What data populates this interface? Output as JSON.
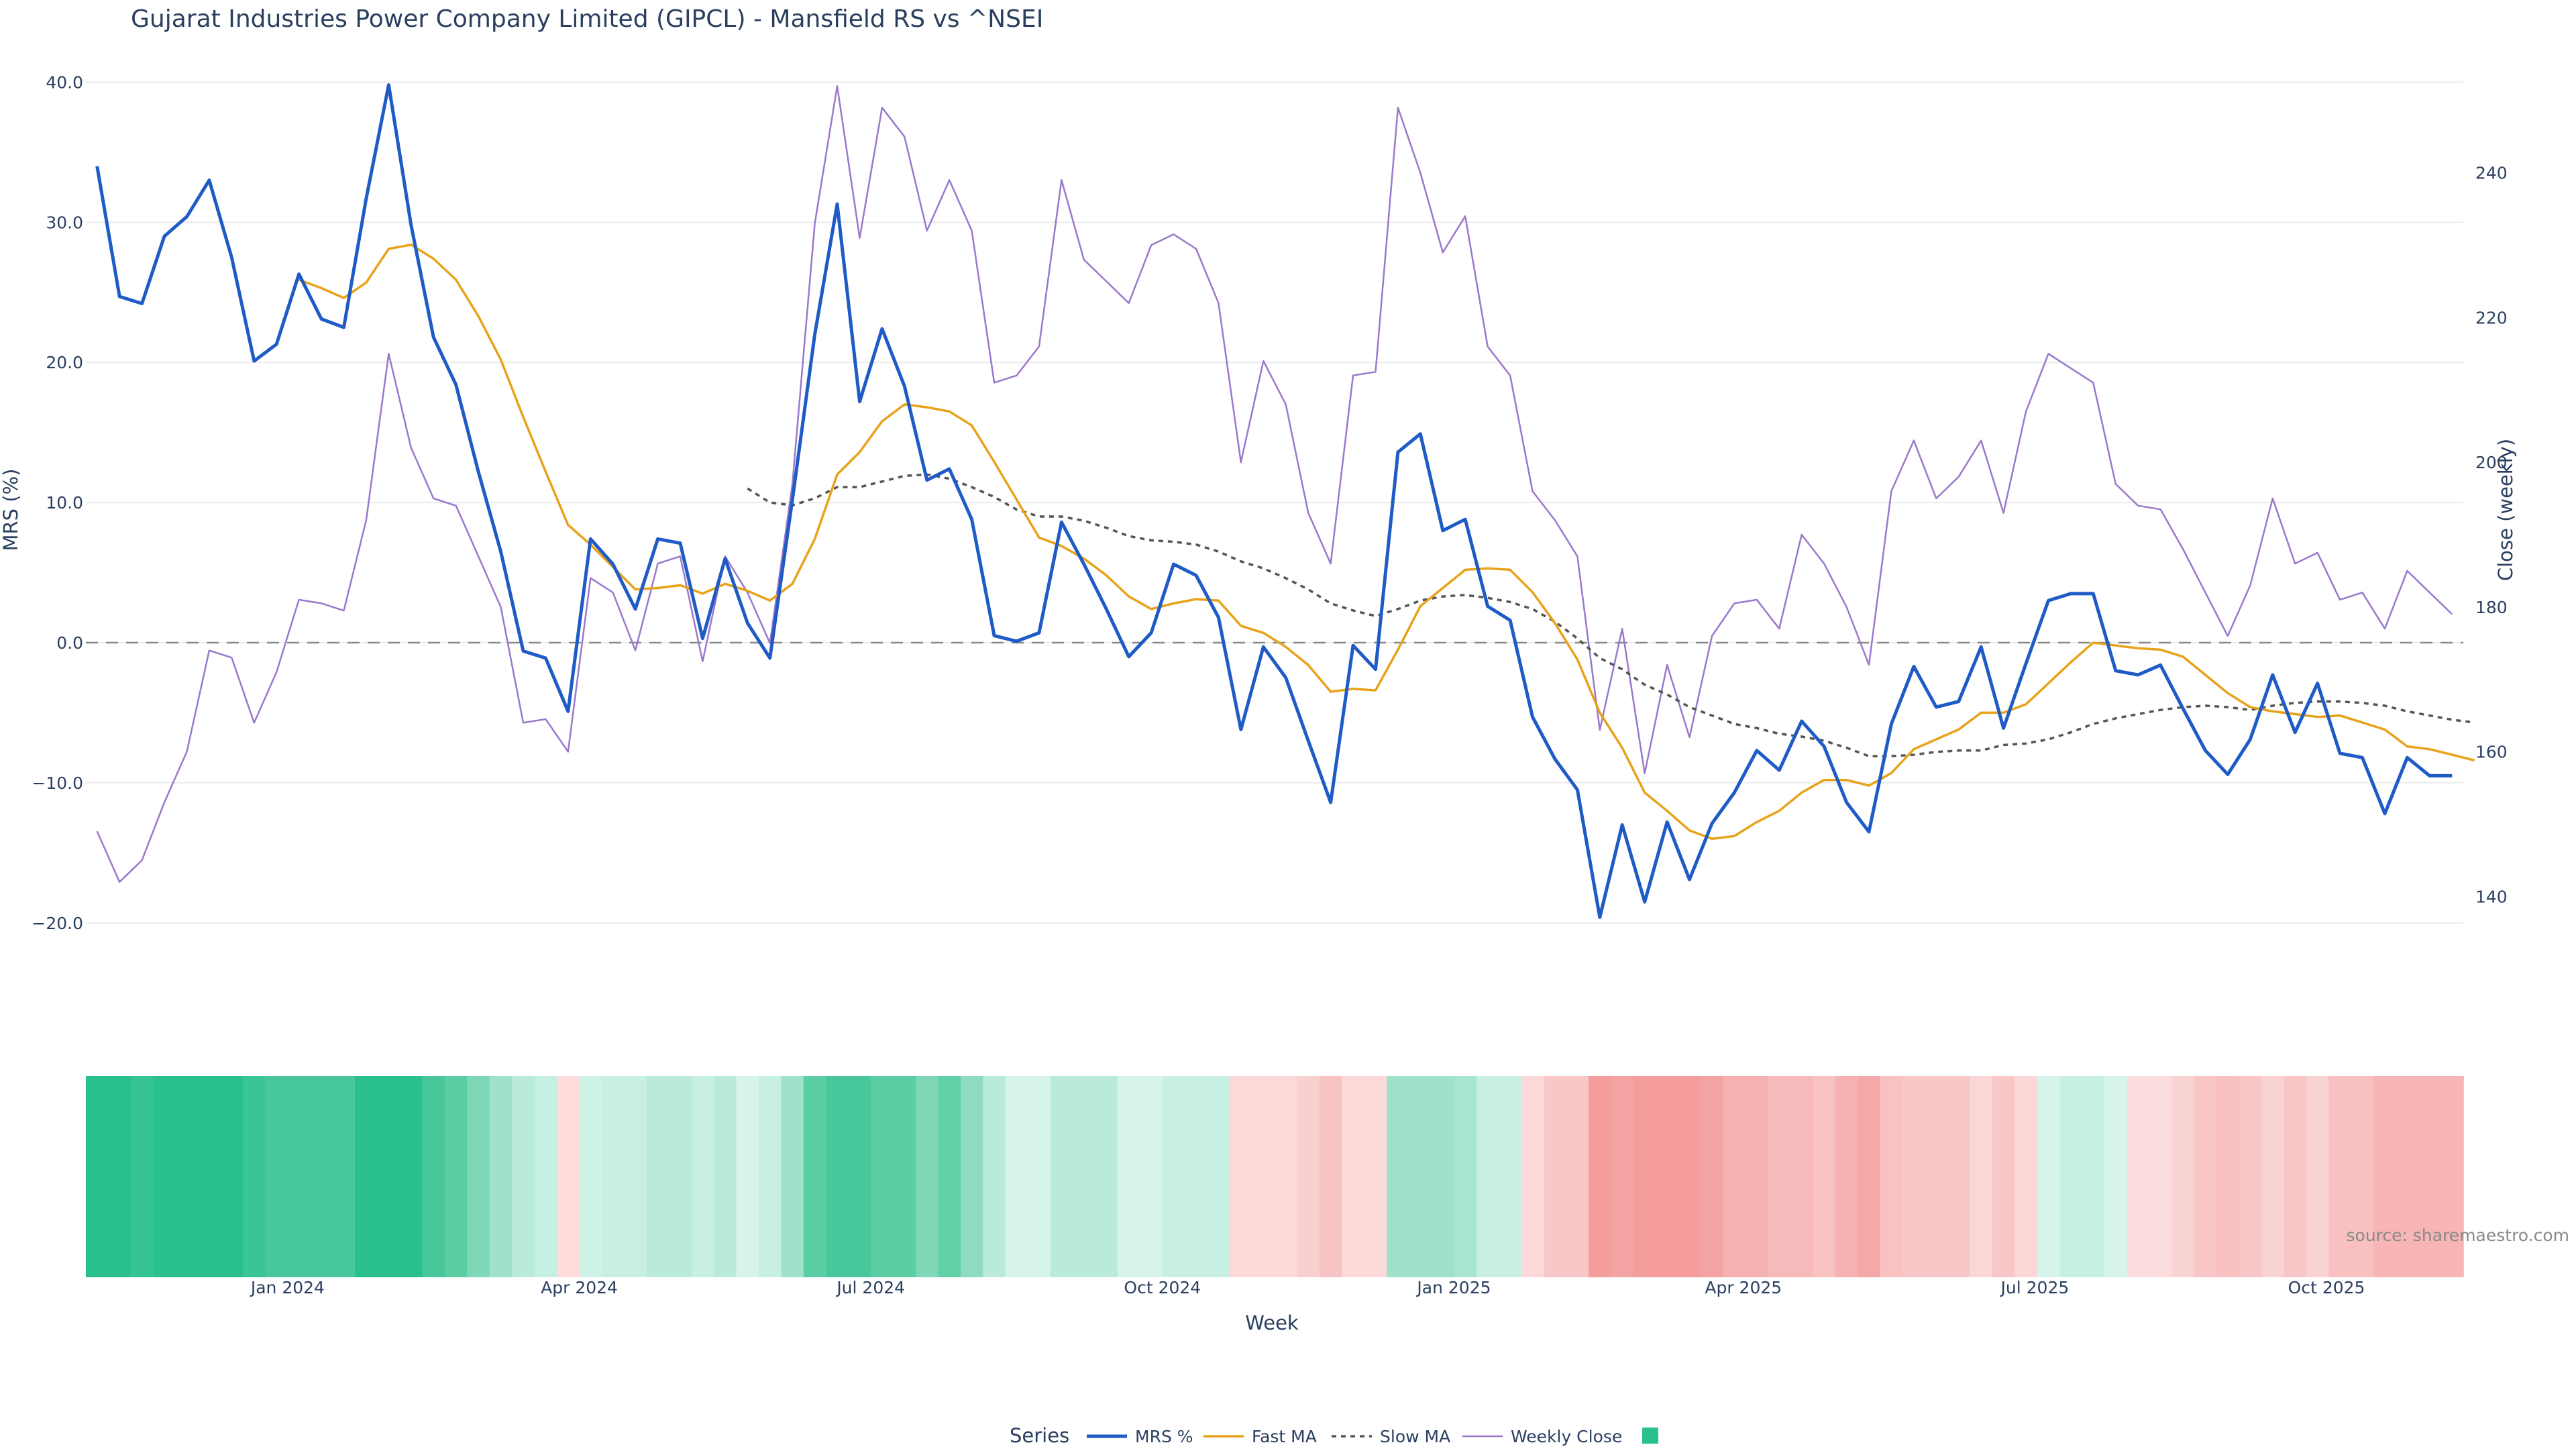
{
  "chart_data": {
    "type": "line",
    "title": "Gujarat Industries Power Company Limited (GIPCL) - Mansfield RS vs ^NSEI",
    "xlabel": "Week",
    "ylabel_left": "MRS (%)",
    "ylabel_right": "Close (weekly)",
    "ylim_left": [
      -22.5,
      40.5
    ],
    "ylim_right": [
      131.5,
      253.5
    ],
    "yticks_left": [
      "40.0",
      "30.0",
      "20.0",
      "10.0",
      "0.0",
      "−10.0",
      "−20.0"
    ],
    "yticks_left_values": [
      40,
      30,
      20,
      10,
      0,
      -10,
      -20
    ],
    "yticks_right": [
      "240",
      "220",
      "200",
      "180",
      "160",
      "140"
    ],
    "yticks_right_values": [
      240,
      220,
      200,
      180,
      160,
      140
    ],
    "xticks": [
      {
        "label": "Jan 2024",
        "week": 8.5
      },
      {
        "label": "Apr 2024",
        "week": 21.5
      },
      {
        "label": "Jul 2024",
        "week": 34.5
      },
      {
        "label": "Oct 2024",
        "week": 47.5
      },
      {
        "label": "Jan 2025",
        "week": 60.5
      },
      {
        "label": "Apr 2025",
        "week": 73.4
      },
      {
        "label": "Jul 2025",
        "week": 86.4
      },
      {
        "label": "Oct 2025",
        "week": 99.4
      }
    ],
    "zero_line": 0,
    "series": [
      {
        "name": "MRS %",
        "color": "#1f5bc6",
        "axis": "left",
        "start": 0,
        "values": [
          34.0,
          24.7,
          24.2,
          29.0,
          30.4,
          33.0,
          27.5,
          20.1,
          21.3,
          26.3,
          23.1,
          22.5,
          31.7,
          39.8,
          29.8,
          21.8,
          18.4,
          12.2,
          6.5,
          -0.6,
          -1.1,
          -4.9,
          7.4,
          5.6,
          2.4,
          7.4,
          7.1,
          0.3,
          6.0,
          1.4,
          -1.1,
          10.2,
          22.0,
          31.3,
          17.2,
          22.4,
          18.3,
          11.6,
          12.4,
          8.8,
          0.5,
          0.1,
          0.7,
          8.6,
          5.6,
          2.4,
          -1.0,
          0.7,
          5.6,
          4.8,
          1.8,
          -6.2,
          -0.3,
          -2.5,
          -7.0,
          -11.4,
          -0.2,
          -1.9,
          13.6,
          14.9,
          8.0,
          8.8,
          2.6,
          1.6,
          -5.3,
          -8.3,
          -10.5,
          -19.6,
          -13.0,
          -18.5,
          -12.8,
          -16.9,
          -12.9,
          -10.7,
          -7.7,
          -9.1,
          -5.6,
          -7.4,
          -11.4,
          -13.5,
          -5.8,
          -1.7,
          -4.6,
          -4.2,
          -0.3,
          -6.1,
          -1.5,
          3.0,
          3.5,
          3.5,
          -2.0,
          -2.3,
          -1.6,
          -4.7,
          -7.7,
          -9.4,
          -6.9,
          -2.3,
          -6.4,
          -2.9,
          -7.9,
          -8.2,
          -12.2,
          -8.2,
          -9.5,
          -9.5
        ]
      },
      {
        "name": "Fast MA",
        "color": "#e8a21a",
        "axis": "left",
        "start": 9,
        "values": [
          25.9,
          25.3,
          24.6,
          25.7,
          28.1,
          28.4,
          27.4,
          25.9,
          23.3,
          20.2,
          16.1,
          12.2,
          8.4,
          7.0,
          5.4,
          3.8,
          3.9,
          4.1,
          3.5,
          4.2,
          3.7,
          3.0,
          4.2,
          7.4,
          12.0,
          13.6,
          15.8,
          17.0,
          16.8,
          16.5,
          15.5,
          12.9,
          10.2,
          7.5,
          6.9,
          6.0,
          4.8,
          3.3,
          2.4,
          2.8,
          3.1,
          3.0,
          1.2,
          0.7,
          -0.3,
          -1.6,
          -3.5,
          -3.3,
          -3.4,
          -0.5,
          2.6,
          3.9,
          5.2,
          5.3,
          5.2,
          3.6,
          1.4,
          -1.2,
          -5.0,
          -7.5,
          -10.7,
          -12.0,
          -13.4,
          -14.0,
          -13.8,
          -12.8,
          -12.0,
          -10.7,
          -9.8,
          -9.8,
          -10.2,
          -9.3,
          -7.6,
          -6.9,
          -6.2,
          -5.0,
          -5.0,
          -4.4,
          -2.9,
          -1.4,
          0.0,
          -0.2,
          -0.4,
          -0.5,
          -1.0,
          -2.3,
          -3.6,
          -4.6,
          -4.9,
          -5.1,
          -5.3,
          -5.2,
          -5.7,
          -6.2,
          -7.4,
          -7.6,
          -8.0,
          -8.4
        ]
      },
      {
        "name": "Slow MA",
        "color": "#555555",
        "axis": "left",
        "start": 29,
        "dash": true,
        "values": [
          11.0,
          10.0,
          9.8,
          10.3,
          11.1,
          11.1,
          11.5,
          11.9,
          12.0,
          11.7,
          11.1,
          10.4,
          9.5,
          9.0,
          9.0,
          8.7,
          8.2,
          7.6,
          7.3,
          7.2,
          7.0,
          6.5,
          5.8,
          5.3,
          4.6,
          3.8,
          2.8,
          2.3,
          1.9,
          2.4,
          3.0,
          3.3,
          3.4,
          3.2,
          2.9,
          2.4,
          1.5,
          0.3,
          -1.1,
          -1.9,
          -3.0,
          -3.7,
          -4.6,
          -5.2,
          -5.8,
          -6.1,
          -6.5,
          -6.7,
          -7.0,
          -7.5,
          -8.1,
          -8.1,
          -8.0,
          -7.8,
          -7.7,
          -7.7,
          -7.3,
          -7.2,
          -6.9,
          -6.4,
          -5.8,
          -5.4,
          -5.1,
          -4.8,
          -4.6,
          -4.5,
          -4.6,
          -4.8,
          -4.5,
          -4.3,
          -4.2,
          -4.2,
          -4.3,
          -4.5,
          -4.9,
          -5.2,
          -5.5,
          -5.7
        ]
      },
      {
        "name": "Weekly Close",
        "color": "#9a78cc",
        "axis": "right",
        "start": 0,
        "values": [
          149,
          142,
          145,
          153,
          160,
          174,
          173,
          164,
          171,
          181,
          180.5,
          179.5,
          192,
          215,
          202,
          195,
          194,
          187,
          180,
          164,
          164.5,
          160,
          184,
          182,
          174,
          186,
          187,
          172.5,
          187,
          182,
          175,
          197,
          233,
          252,
          231,
          249,
          245,
          232,
          239,
          232,
          211,
          212,
          216,
          239,
          228,
          225,
          222,
          230,
          231.5,
          229.5,
          222,
          200,
          214,
          208,
          193,
          186,
          212,
          212.5,
          249,
          240,
          229,
          234,
          216,
          212,
          196,
          192,
          187,
          163,
          177,
          157,
          172,
          162,
          176,
          180.5,
          181,
          177,
          190,
          186,
          180,
          172,
          196,
          203,
          195,
          198,
          203,
          193,
          207,
          215,
          213,
          211,
          197,
          194,
          193.5,
          188,
          182,
          176,
          183,
          195,
          186,
          187.5,
          181,
          182,
          177,
          185,
          182,
          179
        ]
      }
    ],
    "heatmap": {
      "row": "MRS %",
      "colors": [
        "#29c08e",
        "#29c08e",
        "#37c494",
        "#29c08e",
        "#29c08e",
        "#29c08e",
        "#29c08e",
        "#3ac595",
        "#48c89a",
        "#48c89a",
        "#48c89a",
        "#48c89a",
        "#29c08e",
        "#29c08e",
        "#29c08e",
        "#48c89a",
        "#5ccea4",
        "#7ed8b8",
        "#9ee2c9",
        "#b9eadb",
        "#c5efe2",
        "#ffdcdc",
        "#cff2e7",
        "#c7efe3",
        "#c7efe3",
        "#b9eadb",
        "#b9eadb",
        "#c7efe3",
        "#b9eadb",
        "#d6f4eb",
        "#c7efe3",
        "#9ee2c9",
        "#5ccea4",
        "#48c89a",
        "#48c89a",
        "#5ccea4",
        "#5ccea4",
        "#7ed8b8",
        "#62d0a7",
        "#8edbbf",
        "#b9eadb",
        "#d6f4eb",
        "#d6f4eb",
        "#b9eadb",
        "#b9eadb",
        "#b9eadb",
        "#d6f4eb",
        "#d6f4eb",
        "#c7efe3",
        "#c7efe3",
        "#c7efe3",
        "#fcdada",
        "#fcdada",
        "#fcdada",
        "#f8d0d0",
        "#f7c3c3",
        "#fcdada",
        "#fcdada",
        "#9ee2c9",
        "#9ee2c9",
        "#9ee2c9",
        "#a8e5ce",
        "#c7efe3",
        "#c7efe3",
        "#fcdada",
        "#f8c8c8",
        "#f8c8c8",
        "#f59c9c",
        "#f4a3a3",
        "#f59c9c",
        "#f59c9c",
        "#f59c9c",
        "#f4a3a3",
        "#f6b1b1",
        "#f6b1b1",
        "#f7baba",
        "#f7baba",
        "#f8c2c2",
        "#f6b1b1",
        "#f4a8a8",
        "#f8c2c2",
        "#f8c8c8",
        "#f8c8c8",
        "#f8c8c8",
        "#fad6d6",
        "#f8c8c8",
        "#fad6d6",
        "#d6f4eb",
        "#c5efe2",
        "#c5efe2",
        "#d6f4eb",
        "#fadcdc",
        "#fadcdc",
        "#f9d2d2",
        "#f8c6c6",
        "#f8c0c0",
        "#f8c6c6",
        "#f9d2d2",
        "#f8c6c6",
        "#f9d2d2",
        "#f8c0c0",
        "#f8c0c0",
        "#f7b5b5",
        "#f7b5b5",
        "#f7b5b5",
        "#f7b5b5"
      ]
    },
    "legend": {
      "title": "Series",
      "items": [
        "MRS %",
        "Fast MA",
        "Slow MA",
        "Weekly Close",
        ""
      ],
      "swatch_color": "#29c08e",
      "placement": "bottom-center"
    },
    "source": "source: sharemaestro.com"
  }
}
